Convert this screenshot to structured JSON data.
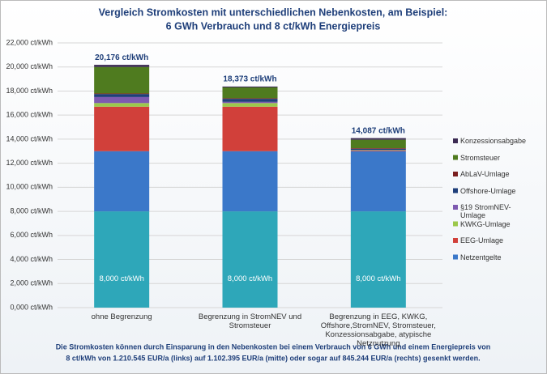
{
  "chart_data": {
    "type": "stacked_bar",
    "title": [
      "Vergleich Stromkosten mit unterschiedlichen Nebenkosten, am Beispiel:",
      "6 GWh Verbrauch und 8 ct/kWh Energiepreis"
    ],
    "categories": [
      "ohne Begrenzung",
      "Begrenzung in StromNEV und Stromsteuer",
      "Begrenzung in EEG, KWKG, Offshore,StromNEV, Stromsteuer, Konzessionsabgabe, atypische Netznutzung"
    ],
    "series": [
      {
        "color": "#2ea7b9",
        "values": [
          8000,
          8000,
          8000
        ],
        "value_labels": [
          "8,000 ct/kWh",
          "8,000 ct/kWh",
          "8,000 ct/kWh"
        ]
      },
      {
        "name": "Netzentgelte",
        "color": "#3b78c9",
        "values": [
          5000,
          5000,
          5000
        ]
      },
      {
        "name": "EEG-Umlage",
        "color": "#d1403a",
        "values": [
          3700,
          3700,
          50
        ]
      },
      {
        "name": "KWKG-Umlage",
        "color": "#9cc84b",
        "values": [
          300,
          300,
          30
        ]
      },
      {
        "name": "§19 StromNEV-Umlage",
        "color": "#7e5ab0",
        "values": [
          500,
          100,
          20
        ]
      },
      {
        "name": "Offshore-Umlage",
        "color": "#1f3f7a",
        "values": [
          250,
          250,
          100
        ]
      },
      {
        "name": "AbLaV-Umlage",
        "color": "#7a1f1f",
        "values": [
          50,
          50,
          50
        ]
      },
      {
        "name": "Stromsteuer",
        "color": "#4f7b1f",
        "values": [
          2200,
          900,
          700
        ]
      },
      {
        "name": "Konzessionsabgabe",
        "color": "#3b2a52",
        "values": [
          176,
          73,
          137
        ]
      }
    ],
    "totals": [
      20176,
      18373,
      14087
    ],
    "total_labels": [
      "20,176 ct/kWh",
      "18,373 ct/kWh",
      "14,087 ct/kWh"
    ],
    "ylim": [
      0,
      22000
    ],
    "yticks": [
      {
        "value": 0,
        "label": "0,000 ct/kWh"
      },
      {
        "value": 2000,
        "label": "2,000 ct/kWh"
      },
      {
        "value": 4000,
        "label": "4,000 ct/kWh"
      },
      {
        "value": 6000,
        "label": "6,000 ct/kWh"
      },
      {
        "value": 8000,
        "label": "8,000 ct/kWh"
      },
      {
        "value": 10000,
        "label": "10,000 ct/kWh"
      },
      {
        "value": 12000,
        "label": "12,000 ct/kWh"
      },
      {
        "value": 14000,
        "label": "14,000 ct/kWh"
      },
      {
        "value": 16000,
        "label": "16,000 ct/kWh"
      },
      {
        "value": 18000,
        "label": "18,000 ct/kWh"
      },
      {
        "value": 20000,
        "label": "20,000 ct/kWh"
      },
      {
        "value": 22000,
        "label": "22,000 ct/kWh"
      }
    ],
    "grid": true,
    "legend": "right",
    "footnote": [
      "Die Stromkosten können durch Einsparung in den Nebenkosten bei einem Verbrauch von 6 GWh und einem Energiepreis von",
      "8 ct/kWh von 1.210.545 EUR/a (links) auf 1.102.395 EUR/a  (mitte) oder sogar auf 845.244 EUR/a  (rechts) gesenkt werden."
    ]
  }
}
